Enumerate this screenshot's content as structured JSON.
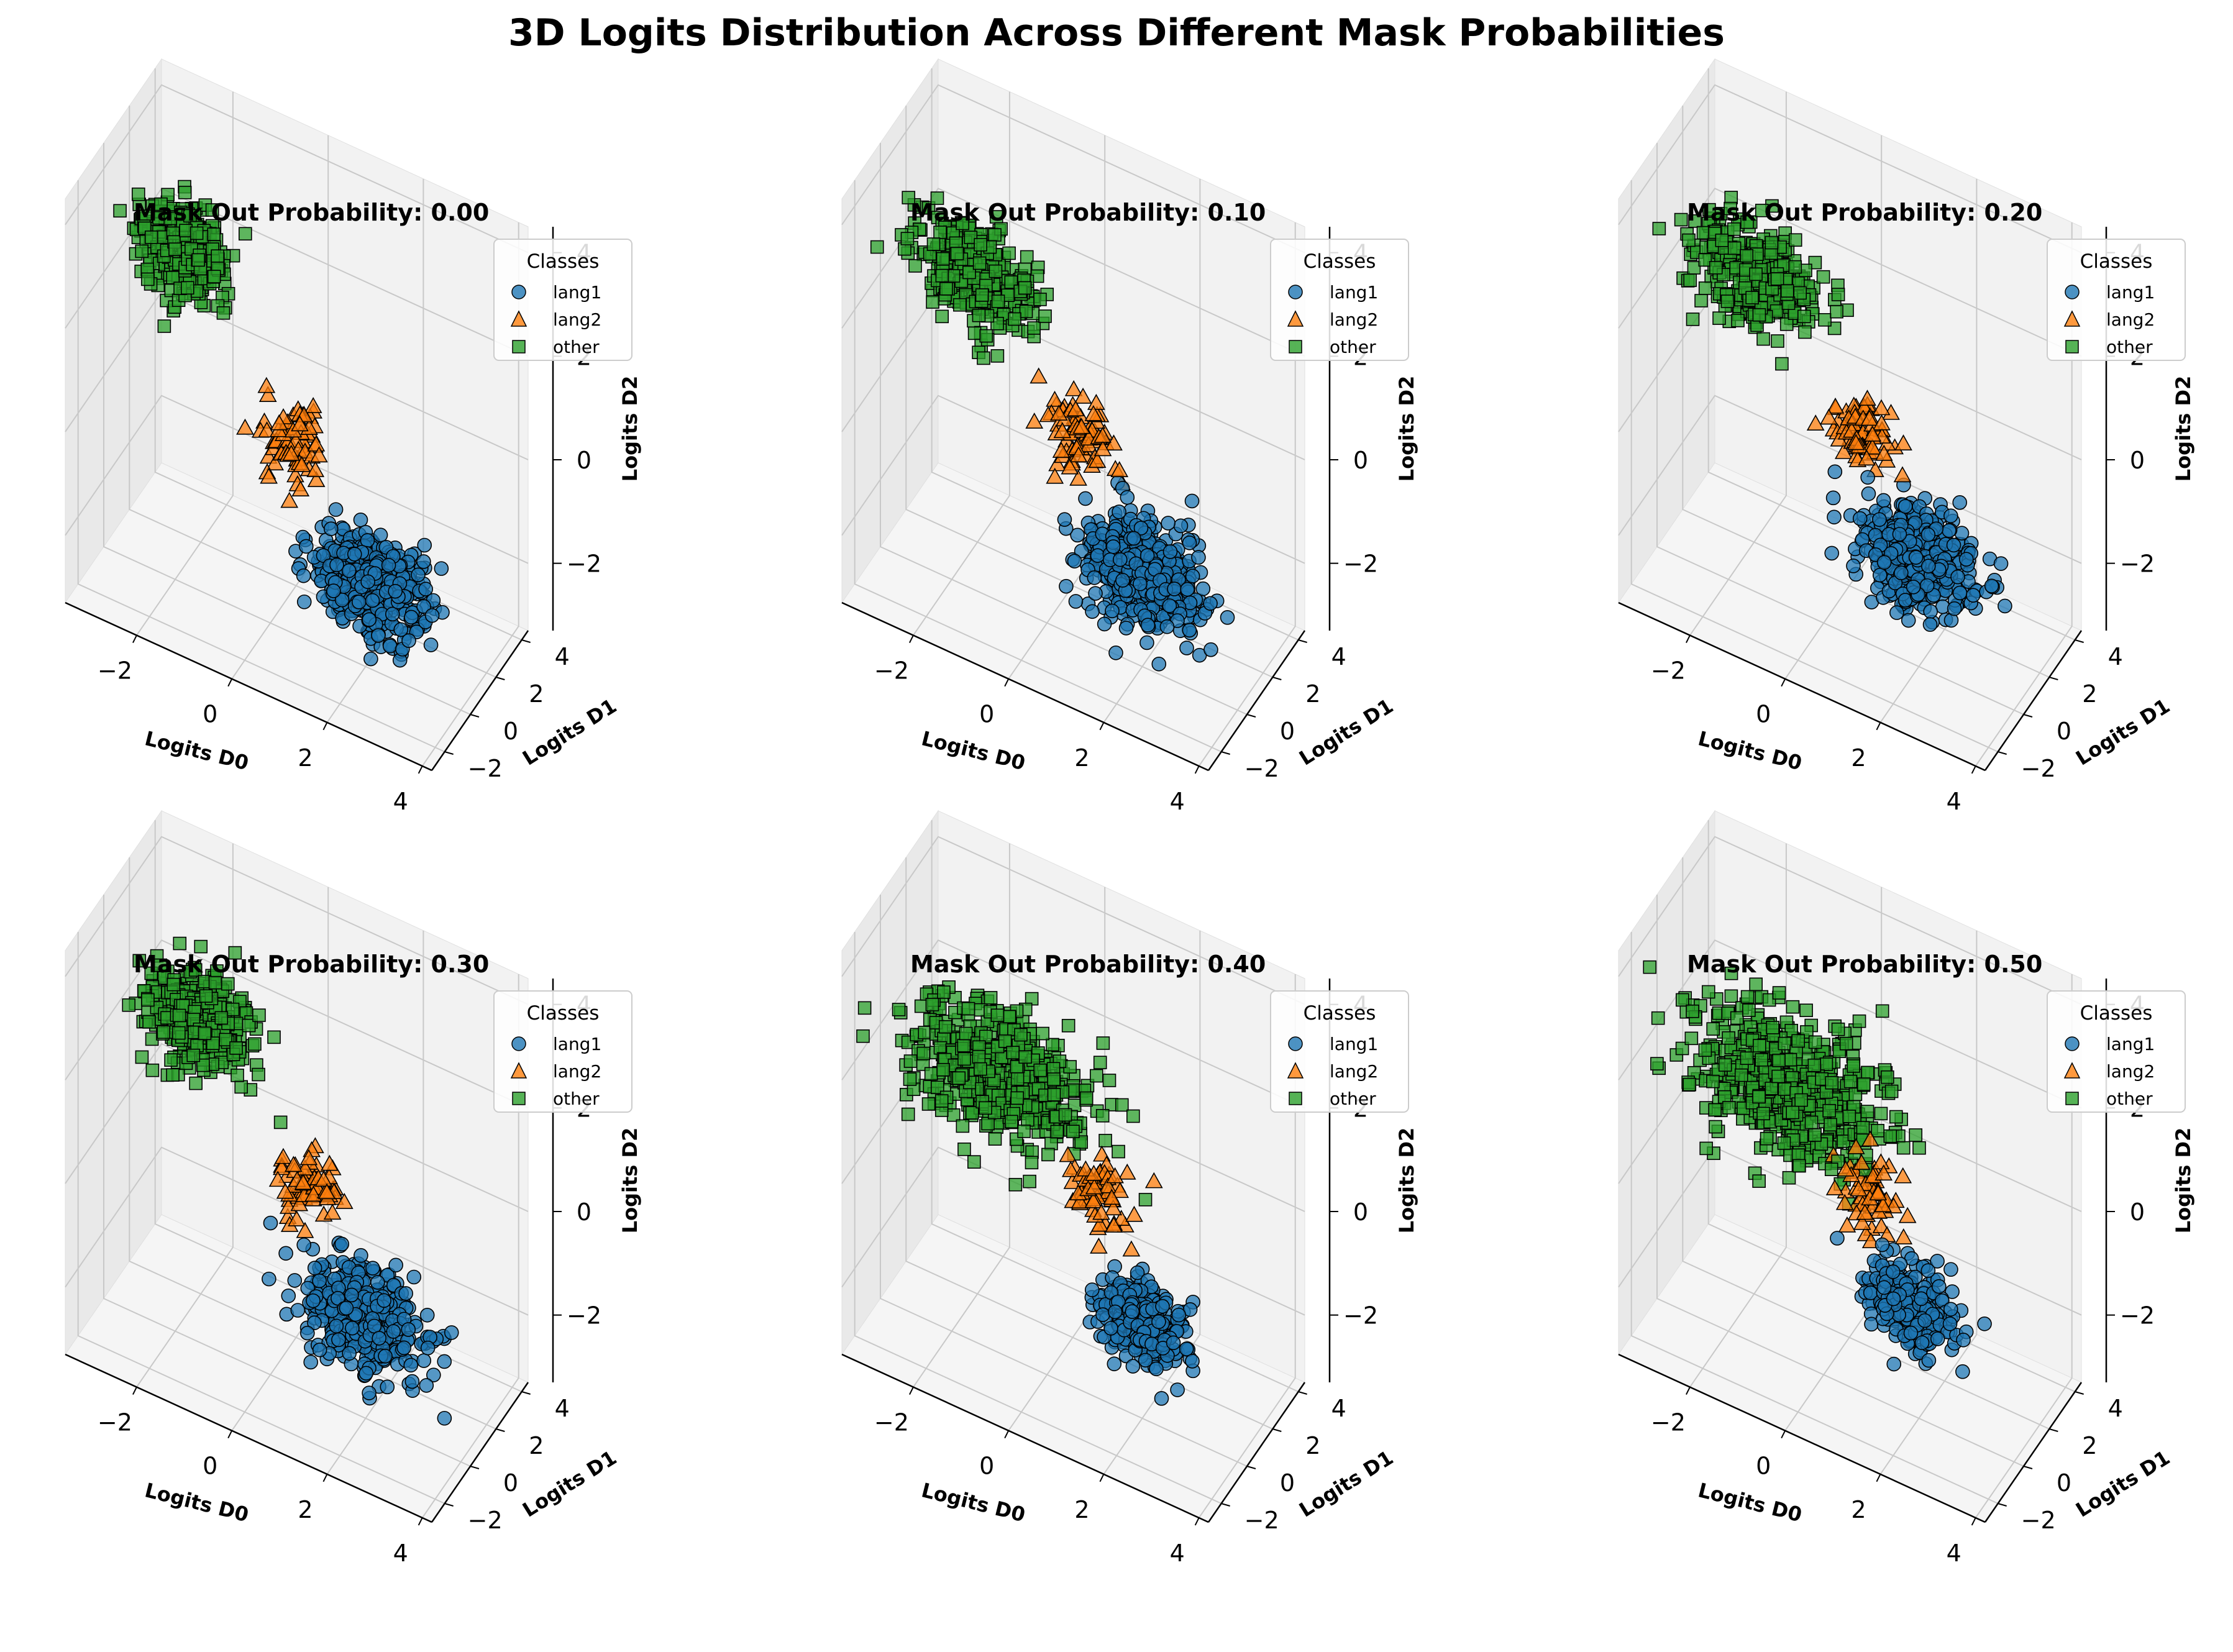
{
  "figure": {
    "title": "3D Logits Distribution Across Different Mask Probabilities"
  },
  "legend": {
    "title": "Classes",
    "placement": "top-right"
  },
  "axes": {
    "xlabel": "Logits D0",
    "ylabel": "Logits D1",
    "zlabel": "Logits D2"
  },
  "colors": {
    "lang1": "#1f77b4",
    "lang2": "#ff7f0e",
    "other": "#2ca02c"
  },
  "chart_data": [
    {
      "type": "scatter",
      "subtype": "3d-scatter",
      "title": "Mask Out Probability: 0.00",
      "xlabel": "Logits D0",
      "ylabel": "Logits D1",
      "zlabel": "Logits D2",
      "xticks": [
        -2,
        0,
        2,
        4
      ],
      "yticks": [
        -2,
        0,
        2,
        4
      ],
      "zticks": [
        -2,
        0,
        2,
        4
      ],
      "xlim": [
        -3.5,
        4.2
      ],
      "ylim": [
        -3.0,
        4.5
      ],
      "zlim": [
        -3.3,
        4.5
      ],
      "grid": true,
      "series": [
        {
          "name": "lang1",
          "marker": "circle",
          "color": "#1f77b4",
          "center": [
            2.6,
            -1.6,
            -0.9
          ],
          "spread": [
            0.55,
            0.5,
            0.4
          ],
          "count": 520
        },
        {
          "name": "lang2",
          "marker": "triangle",
          "color": "#ff7f0e",
          "center": [
            0.6,
            -0.4,
            0.6
          ],
          "spread": [
            0.35,
            0.3,
            0.35
          ],
          "count": 70
        },
        {
          "name": "other",
          "marker": "square",
          "color": "#2ca02c",
          "center": [
            -2.3,
            1.9,
            2.2
          ],
          "spread": [
            0.5,
            0.45,
            0.4
          ],
          "count": 300
        }
      ]
    },
    {
      "type": "scatter",
      "subtype": "3d-scatter",
      "title": "Mask Out Probability: 0.10",
      "xlabel": "Logits D0",
      "ylabel": "Logits D1",
      "zlabel": "Logits D2",
      "xticks": [
        -2,
        0,
        2,
        4
      ],
      "yticks": [
        -2,
        0,
        2,
        4
      ],
      "zticks": [
        -2,
        0,
        2,
        4
      ],
      "xlim": [
        -3.5,
        4.2
      ],
      "ylim": [
        -3.0,
        4.5
      ],
      "zlim": [
        -3.3,
        4.5
      ],
      "grid": true,
      "series": [
        {
          "name": "lang1",
          "marker": "circle",
          "color": "#1f77b4",
          "center": [
            2.4,
            -1.4,
            -0.8
          ],
          "spread": [
            0.6,
            0.55,
            0.45
          ],
          "count": 480
        },
        {
          "name": "lang2",
          "marker": "triangle",
          "color": "#ff7f0e",
          "center": [
            0.7,
            -0.2,
            0.7
          ],
          "spread": [
            0.35,
            0.3,
            0.35
          ],
          "count": 80
        },
        {
          "name": "other",
          "marker": "square",
          "color": "#2ca02c",
          "center": [
            -2.0,
            1.7,
            2.0
          ],
          "spread": [
            0.6,
            0.5,
            0.45
          ],
          "count": 340
        }
      ]
    },
    {
      "type": "scatter",
      "subtype": "3d-scatter",
      "title": "Mask Out Probability: 0.20",
      "xlabel": "Logits D0",
      "ylabel": "Logits D1",
      "zlabel": "Logits D2",
      "xticks": [
        -2,
        0,
        2,
        4
      ],
      "yticks": [
        -2,
        0,
        2,
        4
      ],
      "zticks": [
        -2,
        0,
        2,
        4
      ],
      "xlim": [
        -3.5,
        4.2
      ],
      "ylim": [
        -3.0,
        4.5
      ],
      "zlim": [
        -3.3,
        4.5
      ],
      "grid": true,
      "series": [
        {
          "name": "lang1",
          "marker": "circle",
          "color": "#1f77b4",
          "center": [
            2.3,
            -1.3,
            -0.6
          ],
          "spread": [
            0.6,
            0.5,
            0.45
          ],
          "count": 420
        },
        {
          "name": "lang2",
          "marker": "triangle",
          "color": "#ff7f0e",
          "center": [
            0.8,
            -0.1,
            0.8
          ],
          "spread": [
            0.35,
            0.3,
            0.35
          ],
          "count": 80
        },
        {
          "name": "other",
          "marker": "square",
          "color": "#2ca02c",
          "center": [
            -1.9,
            1.7,
            2.0
          ],
          "spread": [
            0.65,
            0.5,
            0.45
          ],
          "count": 380
        }
      ]
    },
    {
      "type": "scatter",
      "subtype": "3d-scatter",
      "title": "Mask Out Probability: 0.30",
      "xlabel": "Logits D0",
      "ylabel": "Logits D1",
      "zlabel": "Logits D2",
      "xticks": [
        -2,
        0,
        2,
        4
      ],
      "yticks": [
        -2,
        0,
        2,
        4
      ],
      "zticks": [
        -2,
        0,
        2,
        4
      ],
      "xlim": [
        -3.5,
        4.2
      ],
      "ylim": [
        -3.0,
        4.5
      ],
      "zlim": [
        -3.3,
        4.5
      ],
      "grid": true,
      "series": [
        {
          "name": "lang1",
          "marker": "circle",
          "color": "#1f77b4",
          "center": [
            2.3,
            -1.4,
            -0.7
          ],
          "spread": [
            0.6,
            0.55,
            0.45
          ],
          "count": 440
        },
        {
          "name": "lang2",
          "marker": "triangle",
          "color": "#ff7f0e",
          "center": [
            0.9,
            -0.1,
            0.7
          ],
          "spread": [
            0.35,
            0.3,
            0.35
          ],
          "count": 70
        },
        {
          "name": "other",
          "marker": "square",
          "color": "#2ca02c",
          "center": [
            -2.0,
            1.8,
            2.1
          ],
          "spread": [
            0.55,
            0.5,
            0.45
          ],
          "count": 340
        }
      ]
    },
    {
      "type": "scatter",
      "subtype": "3d-scatter",
      "title": "Mask Out Probability: 0.40",
      "xlabel": "Logits D0",
      "ylabel": "Logits D1",
      "zlabel": "Logits D2",
      "xticks": [
        -2,
        0,
        2,
        4
      ],
      "yticks": [
        -2,
        0,
        2,
        4
      ],
      "zticks": [
        -2,
        0,
        2,
        4
      ],
      "xlim": [
        -3.5,
        4.2
      ],
      "ylim": [
        -3.0,
        4.5
      ],
      "zlim": [
        -3.3,
        4.5
      ],
      "grid": true,
      "series": [
        {
          "name": "lang1",
          "marker": "circle",
          "color": "#1f77b4",
          "center": [
            2.4,
            -1.4,
            -0.8
          ],
          "spread": [
            0.45,
            0.4,
            0.35
          ],
          "count": 300
        },
        {
          "name": "lang2",
          "marker": "triangle",
          "color": "#ff7f0e",
          "center": [
            1.0,
            0.0,
            0.7
          ],
          "spread": [
            0.35,
            0.3,
            0.35
          ],
          "count": 70
        },
        {
          "name": "other",
          "marker": "square",
          "color": "#2ca02c",
          "center": [
            -1.3,
            1.3,
            1.5
          ],
          "spread": [
            0.9,
            0.6,
            0.55
          ],
          "count": 520
        }
      ]
    },
    {
      "type": "scatter",
      "subtype": "3d-scatter",
      "title": "Mask Out Probability: 0.50",
      "xlabel": "Logits D0",
      "ylabel": "Logits D1",
      "zlabel": "Logits D2",
      "xticks": [
        -2,
        0,
        2,
        4
      ],
      "yticks": [
        -2,
        0,
        2,
        4
      ],
      "zticks": [
        -2,
        0,
        2,
        4
      ],
      "xlim": [
        -3.5,
        4.2
      ],
      "ylim": [
        -3.0,
        4.5
      ],
      "zlim": [
        -3.3,
        4.5
      ],
      "grid": true,
      "series": [
        {
          "name": "lang1",
          "marker": "circle",
          "color": "#1f77b4",
          "center": [
            2.2,
            -1.3,
            -0.6
          ],
          "spread": [
            0.5,
            0.4,
            0.35
          ],
          "count": 220
        },
        {
          "name": "lang2",
          "marker": "triangle",
          "color": "#ff7f0e",
          "center": [
            1.0,
            0.0,
            0.6
          ],
          "spread": [
            0.35,
            0.3,
            0.35
          ],
          "count": 60
        },
        {
          "name": "other",
          "marker": "square",
          "color": "#2ca02c",
          "center": [
            -1.0,
            1.2,
            1.4
          ],
          "spread": [
            1.0,
            0.7,
            0.6
          ],
          "count": 600
        }
      ]
    }
  ]
}
